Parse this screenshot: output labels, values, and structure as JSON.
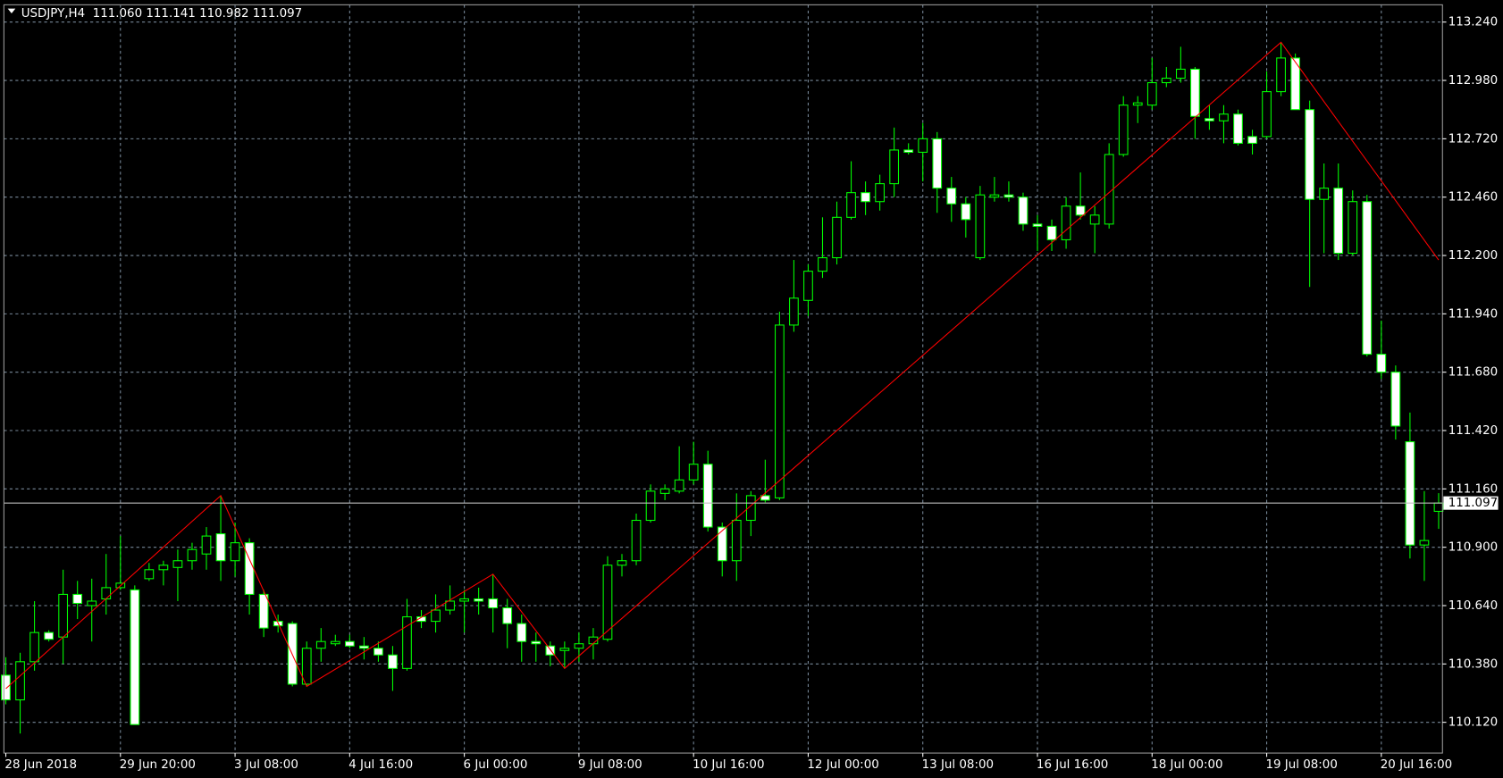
{
  "chart_data": {
    "type": "candlestick",
    "title": "USDJPY,H4  111.060 111.141 110.982 111.097",
    "background": "#000000",
    "foreground": "#ffffff",
    "grid": true,
    "grid_color": "#778899",
    "up_color": "#000000",
    "down_color": "#ffffff",
    "wick_color": "#00ff00",
    "categories": [
      "28 Jun 2018",
      null,
      null,
      null,
      null,
      null,
      null,
      null,
      "29 Jun 20:00",
      null,
      null,
      null,
      null,
      null,
      null,
      null,
      "3 Jul 08:00",
      null,
      null,
      null,
      null,
      null,
      null,
      null,
      "4 Jul 16:00",
      null,
      null,
      null,
      null,
      null,
      null,
      null,
      "6 Jul 00:00",
      null,
      null,
      null,
      null,
      null,
      null,
      null,
      "9 Jul 08:00",
      null,
      null,
      null,
      null,
      null,
      null,
      null,
      "10 Jul 16:00",
      null,
      null,
      null,
      null,
      null,
      null,
      null,
      "12 Jul 00:00",
      null,
      null,
      null,
      null,
      null,
      null,
      null,
      "13 Jul 08:00",
      null,
      null,
      null,
      null,
      null,
      null,
      null,
      "16 Jul 16:00",
      null,
      null,
      null,
      null,
      null,
      null,
      null,
      "18 Jul 00:00",
      null,
      null,
      null,
      null,
      null,
      null,
      null,
      "19 Jul 08:00",
      null,
      null,
      null,
      null,
      null,
      null,
      null,
      "20 Jul 16:00",
      null,
      null,
      null,
      null
    ],
    "open": [
      110.33,
      110.22,
      110.39,
      110.52,
      110.5,
      110.69,
      110.64,
      110.67,
      110.72,
      110.71,
      110.76,
      110.8,
      110.81,
      110.84,
      110.87,
      110.96,
      110.84,
      110.92,
      110.69,
      110.57,
      110.56,
      110.29,
      110.45,
      110.47,
      110.48,
      110.46,
      110.45,
      110.42,
      110.36,
      110.59,
      110.57,
      110.62,
      110.66,
      110.67,
      110.67,
      110.63,
      110.56,
      110.48,
      110.46,
      110.44,
      110.45,
      110.47,
      110.49,
      110.82,
      110.84,
      111.02,
      111.14,
      111.15,
      111.2,
      111.27,
      110.99,
      110.84,
      111.02,
      111.13,
      111.12,
      111.89,
      112.0,
      112.13,
      112.19,
      112.37,
      112.48,
      112.44,
      112.52,
      112.67,
      112.66,
      112.72,
      112.5,
      112.43,
      112.19,
      112.46,
      112.47,
      112.46,
      112.34,
      112.33,
      112.27,
      112.42,
      112.34,
      112.34,
      112.65,
      112.87,
      112.87,
      112.97,
      112.99,
      113.03,
      112.81,
      112.8,
      112.83,
      112.73,
      112.73,
      112.93,
      113.08,
      112.85,
      112.45,
      112.5,
      112.21,
      112.44,
      111.76,
      111.68,
      111.37,
      110.91,
      111.06
    ],
    "high": [
      110.41,
      110.43,
      110.66,
      110.53,
      110.8,
      110.75,
      110.76,
      110.87,
      110.95,
      110.73,
      110.83,
      110.84,
      110.89,
      110.92,
      110.99,
      111.13,
      111.01,
      110.94,
      110.71,
      110.6,
      110.57,
      110.48,
      110.54,
      110.51,
      110.51,
      110.5,
      110.48,
      110.46,
      110.67,
      110.62,
      110.69,
      110.73,
      110.71,
      110.72,
      110.78,
      110.67,
      110.6,
      110.52,
      110.48,
      110.48,
      110.52,
      110.54,
      110.86,
      110.87,
      111.05,
      111.18,
      111.18,
      111.35,
      111.37,
      111.33,
      111.01,
      111.14,
      111.15,
      111.29,
      111.95,
      112.18,
      112.16,
      112.37,
      112.44,
      112.62,
      112.53,
      112.56,
      112.77,
      112.7,
      112.79,
      112.75,
      112.55,
      112.46,
      112.51,
      112.55,
      112.53,
      112.48,
      112.38,
      112.36,
      112.46,
      112.57,
      112.42,
      112.7,
      112.91,
      112.91,
      113.08,
      113.04,
      113.13,
      113.04,
      112.87,
      112.87,
      112.85,
      112.76,
      113.02,
      113.15,
      113.1,
      112.89,
      112.61,
      112.61,
      112.49,
      112.47,
      111.91,
      111.71,
      111.5,
      111.15,
      111.141
    ],
    "low": [
      110.2,
      110.07,
      110.35,
      110.48,
      110.38,
      110.58,
      110.48,
      110.6,
      110.71,
      110.11,
      110.75,
      110.73,
      110.66,
      110.8,
      110.8,
      110.75,
      110.77,
      110.6,
      110.5,
      110.52,
      110.28,
      110.28,
      110.39,
      110.46,
      110.45,
      110.4,
      110.39,
      110.26,
      110.35,
      110.54,
      110.52,
      110.6,
      110.52,
      110.6,
      110.52,
      110.45,
      110.39,
      110.39,
      110.37,
      110.36,
      110.39,
      110.4,
      110.48,
      110.77,
      110.82,
      111.01,
      111.11,
      111.14,
      111.18,
      110.97,
      110.77,
      110.75,
      110.95,
      111.1,
      111.11,
      111.86,
      111.93,
      112.1,
      112.16,
      112.36,
      112.38,
      112.4,
      112.46,
      112.65,
      112.53,
      112.39,
      112.35,
      112.28,
      112.18,
      112.44,
      112.44,
      112.31,
      112.22,
      112.22,
      112.23,
      112.36,
      112.21,
      112.32,
      112.64,
      112.79,
      112.85,
      112.95,
      112.97,
      112.72,
      112.76,
      112.7,
      112.69,
      112.65,
      112.72,
      112.91,
      112.85,
      112.06,
      112.21,
      112.18,
      112.2,
      111.75,
      111.65,
      111.38,
      110.85,
      110.75,
      110.982
    ],
    "close": [
      110.22,
      110.39,
      110.52,
      110.49,
      110.69,
      110.65,
      110.66,
      110.72,
      110.74,
      110.11,
      110.8,
      110.82,
      110.84,
      110.89,
      110.95,
      110.84,
      110.92,
      110.69,
      110.54,
      110.55,
      110.29,
      110.45,
      110.48,
      110.48,
      110.46,
      110.45,
      110.42,
      110.36,
      110.59,
      110.57,
      110.62,
      110.66,
      110.67,
      110.66,
      110.63,
      110.56,
      110.48,
      110.47,
      110.42,
      110.45,
      110.47,
      110.5,
      110.82,
      110.84,
      111.02,
      111.15,
      111.16,
      111.2,
      111.27,
      110.99,
      110.84,
      111.02,
      111.13,
      111.11,
      111.89,
      112.01,
      112.13,
      112.19,
      112.37,
      112.48,
      112.44,
      112.52,
      112.67,
      112.66,
      112.72,
      112.5,
      112.43,
      112.36,
      112.47,
      112.47,
      112.46,
      112.34,
      112.33,
      112.27,
      112.42,
      112.38,
      112.38,
      112.65,
      112.87,
      112.88,
      112.97,
      112.99,
      113.03,
      112.82,
      112.8,
      112.83,
      112.7,
      112.7,
      112.93,
      113.08,
      112.85,
      112.45,
      112.5,
      112.21,
      112.44,
      111.76,
      111.68,
      111.44,
      110.91,
      110.93,
      111.097
    ],
    "zigzag": {
      "color": "#ff0000",
      "x": [
        0,
        15,
        21,
        34,
        39,
        89,
        100
      ],
      "values": [
        110.27,
        111.13,
        110.28,
        110.78,
        110.36,
        113.15,
        112.18
      ]
    },
    "current_price": 111.097,
    "current_price_color": "#c0c0c0",
    "ylim": [
      109.983,
      113.317
    ],
    "yticks": [
      {
        "value": 110.12,
        "label": "110.120"
      },
      {
        "value": 110.38,
        "label": "110.380"
      },
      {
        "value": 110.64,
        "label": "110.640"
      },
      {
        "value": 110.9,
        "label": "110.900"
      },
      {
        "value": 111.16,
        "label": "111.160"
      },
      {
        "value": 111.42,
        "label": "111.420"
      },
      {
        "value": 111.68,
        "label": "111.680"
      },
      {
        "value": 111.94,
        "label": "111.940"
      },
      {
        "value": 112.2,
        "label": "112.200"
      },
      {
        "value": 112.46,
        "label": "112.460"
      },
      {
        "value": 112.72,
        "label": "112.720"
      },
      {
        "value": 112.98,
        "label": "112.980"
      },
      {
        "value": 113.24,
        "label": "113.240"
      }
    ]
  }
}
